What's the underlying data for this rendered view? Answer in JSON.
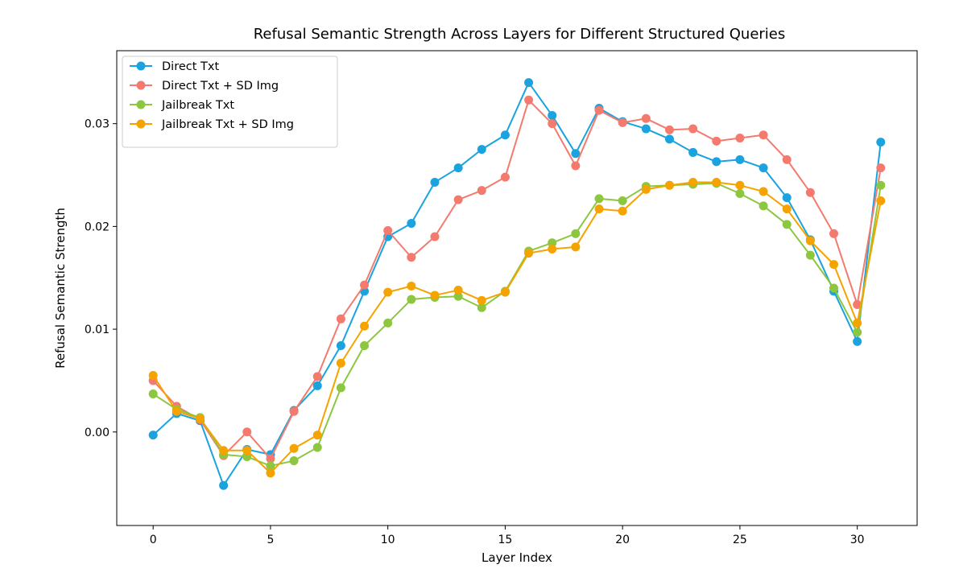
{
  "chart_data": {
    "type": "line",
    "title": "Refusal Semantic Strength Across Layers for Different Structured Queries",
    "xlabel": "Layer Index",
    "ylabel": "Refusal Semantic Strength",
    "xlim": [
      -1.55,
      32.55
    ],
    "ylim": [
      -0.0091,
      0.0371
    ],
    "xticks": [
      0,
      5,
      10,
      15,
      20,
      25,
      30
    ],
    "xtick_labels": [
      "0",
      "5",
      "10",
      "15",
      "20",
      "25",
      "30"
    ],
    "yticks": [
      0.0,
      0.01,
      0.02,
      0.03
    ],
    "ytick_labels": [
      "0.00",
      "0.01",
      "0.02",
      "0.03"
    ],
    "grid": false,
    "legend_position": "top-left",
    "x": [
      0,
      1,
      2,
      3,
      4,
      5,
      6,
      7,
      8,
      9,
      10,
      11,
      12,
      13,
      14,
      15,
      16,
      17,
      18,
      19,
      20,
      21,
      22,
      23,
      24,
      25,
      26,
      27,
      28,
      29,
      30,
      31
    ],
    "series": [
      {
        "name": "Direct Txt",
        "color": "#1aa3df",
        "values": [
          -0.0003,
          0.0018,
          0.0011,
          -0.0052,
          -0.0017,
          -0.0022,
          0.0021,
          0.0045,
          0.0084,
          0.0137,
          0.019,
          0.0203,
          0.0243,
          0.0257,
          0.0275,
          0.0289,
          0.034,
          0.0308,
          0.0271,
          0.0315,
          0.0302,
          0.0295,
          0.0285,
          0.0272,
          0.0263,
          0.0265,
          0.0257,
          0.0228,
          0.0187,
          0.0137,
          0.0088,
          0.0282
        ]
      },
      {
        "name": "Direct Txt + SD Img",
        "color": "#f47a6e",
        "values": [
          0.005,
          0.0025,
          0.0012,
          -0.0023,
          0.0,
          -0.0026,
          0.002,
          0.0054,
          0.011,
          0.0143,
          0.0196,
          0.017,
          0.019,
          0.0226,
          0.0235,
          0.0248,
          0.0323,
          0.03,
          0.0259,
          0.0313,
          0.0301,
          0.0305,
          0.0294,
          0.0295,
          0.0283,
          0.0286,
          0.0289,
          0.0265,
          0.0233,
          0.0193,
          0.0124,
          0.0257
        ]
      },
      {
        "name": "Jailbreak Txt",
        "color": "#8cc73f",
        "values": [
          0.0037,
          0.0022,
          0.0014,
          -0.0022,
          -0.0024,
          -0.0033,
          -0.0028,
          -0.0015,
          0.0043,
          0.0084,
          0.0106,
          0.0129,
          0.0131,
          0.0132,
          0.0121,
          0.0137,
          0.0176,
          0.0184,
          0.0193,
          0.0227,
          0.0225,
          0.0239,
          0.024,
          0.0241,
          0.0242,
          0.0232,
          0.022,
          0.0202,
          0.0172,
          0.014,
          0.0097,
          0.024
        ]
      },
      {
        "name": "Jailbreak Txt + SD Img",
        "color": "#f5a300",
        "values": [
          0.0055,
          0.002,
          0.0013,
          -0.0018,
          -0.0018,
          -0.004,
          -0.0016,
          -0.0003,
          0.0067,
          0.0103,
          0.0136,
          0.0142,
          0.0133,
          0.0138,
          0.0128,
          0.0136,
          0.0174,
          0.0178,
          0.018,
          0.0217,
          0.0215,
          0.0236,
          0.024,
          0.0243,
          0.0243,
          0.024,
          0.0234,
          0.0217,
          0.0186,
          0.0163,
          0.0106,
          0.0225
        ]
      }
    ]
  }
}
